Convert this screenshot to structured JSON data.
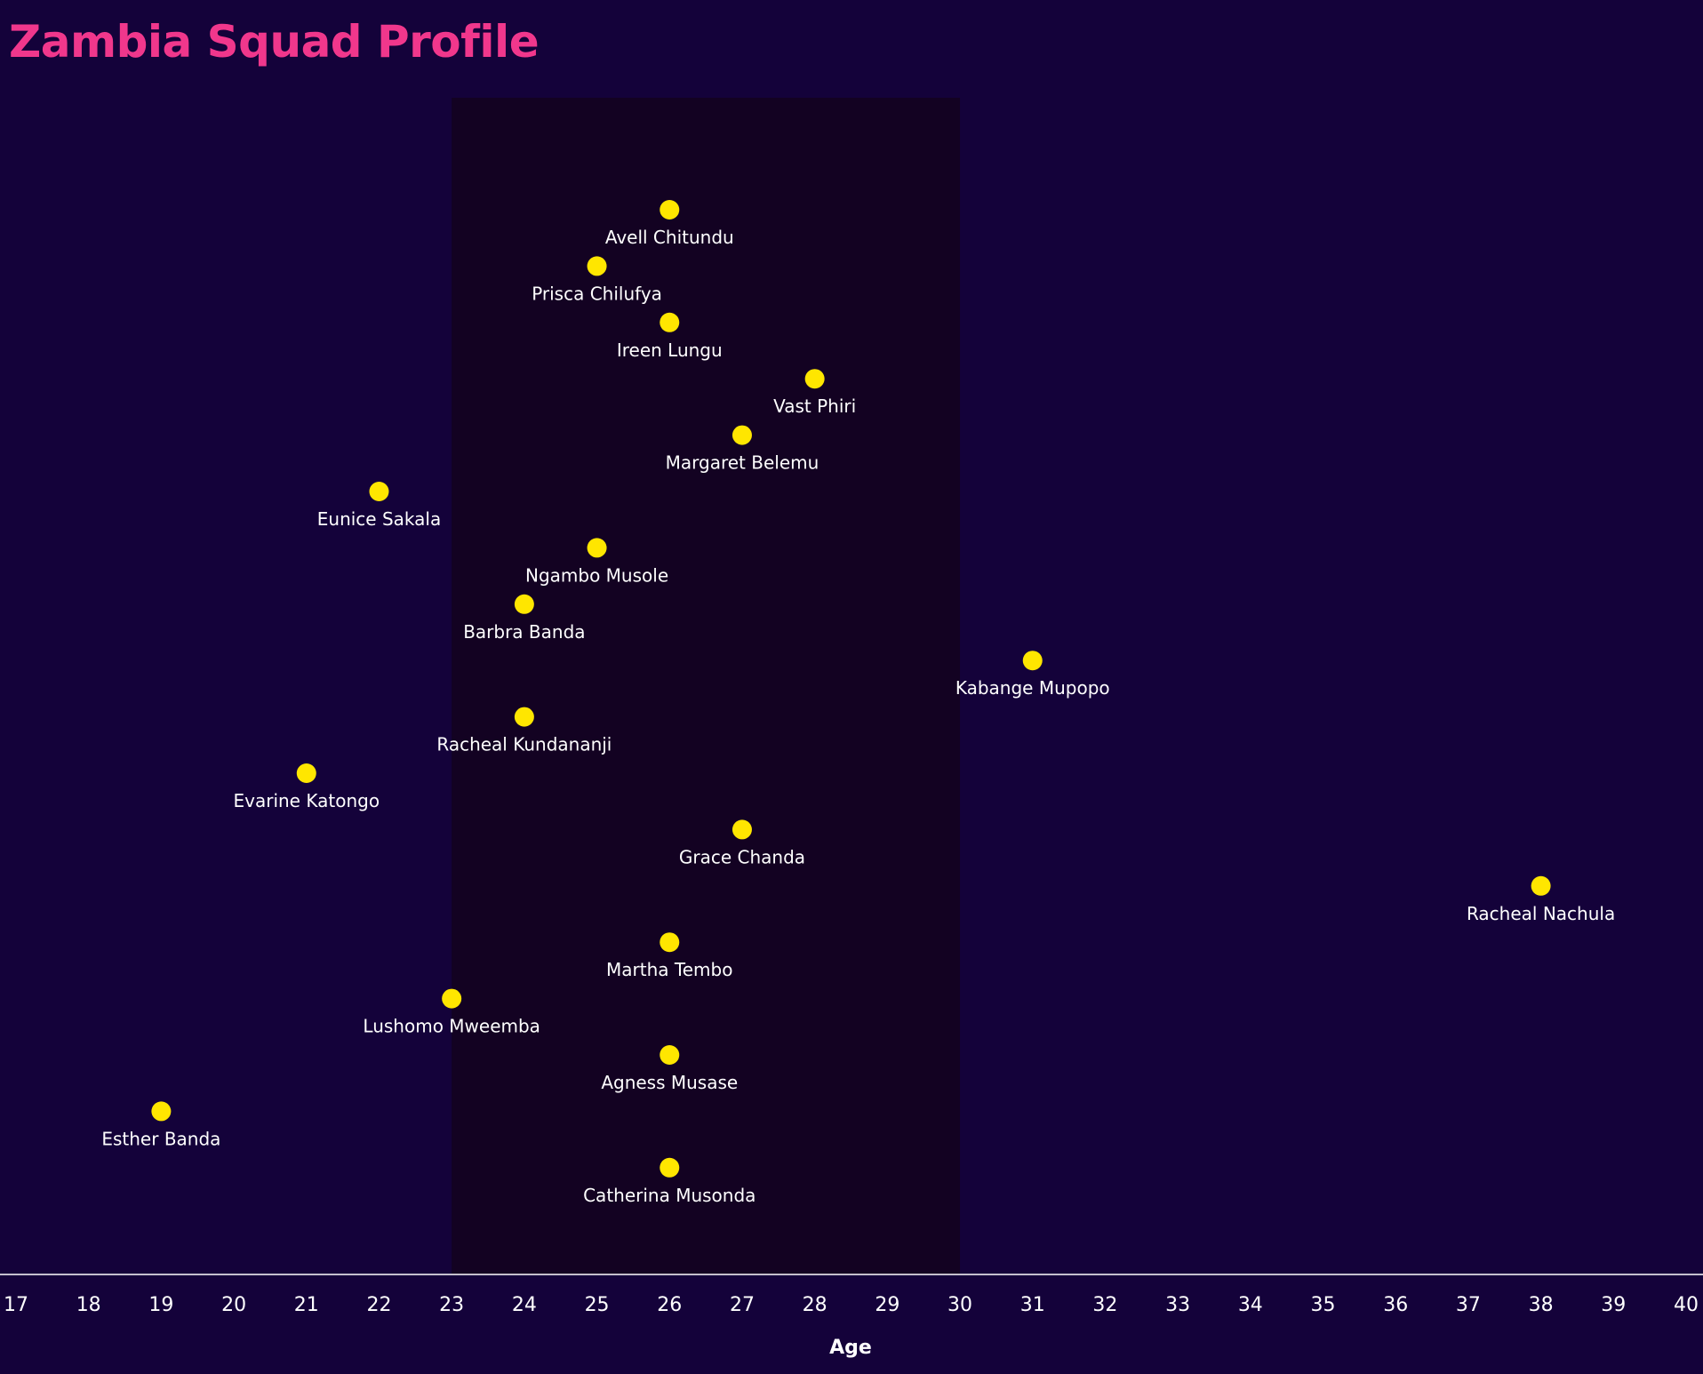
{
  "chart_data": {
    "type": "scatter",
    "title": "Zambia Squad Profile",
    "xlabel": "Age",
    "ylabel": "",
    "xlim": [
      17,
      40
    ],
    "xticks": [
      "17",
      "18",
      "19",
      "20",
      "21",
      "22",
      "23",
      "24",
      "25",
      "26",
      "27",
      "28",
      "29",
      "30",
      "31",
      "32",
      "33",
      "34",
      "35",
      "36",
      "37",
      "38",
      "39",
      "40"
    ],
    "highlight_range": [
      23,
      30
    ],
    "grid": false,
    "legend": "none",
    "points": [
      {
        "name": "Avell Chitundu",
        "age": 26
      },
      {
        "name": "Prisca Chilufya",
        "age": 25
      },
      {
        "name": "Ireen Lungu",
        "age": 26
      },
      {
        "name": "Vast Phiri",
        "age": 28
      },
      {
        "name": "Margaret Belemu",
        "age": 27
      },
      {
        "name": "Eunice Sakala",
        "age": 22
      },
      {
        "name": "Ngambo Musole",
        "age": 25
      },
      {
        "name": "Barbra Banda",
        "age": 24
      },
      {
        "name": "Kabange Mupopo",
        "age": 31
      },
      {
        "name": "Racheal Kundananji",
        "age": 24
      },
      {
        "name": "Evarine Katongo",
        "age": 21
      },
      {
        "name": "Grace Chanda",
        "age": 27
      },
      {
        "name": "Racheal Nachula",
        "age": 38
      },
      {
        "name": "Martha Tembo",
        "age": 26
      },
      {
        "name": "Lushomo Mweemba",
        "age": 23
      },
      {
        "name": "Agness Musase",
        "age": 26
      },
      {
        "name": "Esther Banda",
        "age": 19
      },
      {
        "name": "Catherina Musonda",
        "age": 26
      }
    ]
  },
  "colors": {
    "background": "#14023a",
    "highlight_band": "#130222",
    "point": "#ffe600",
    "label": "#ffffff",
    "title": "#f0378c",
    "axis_line": "#ffffff"
  }
}
